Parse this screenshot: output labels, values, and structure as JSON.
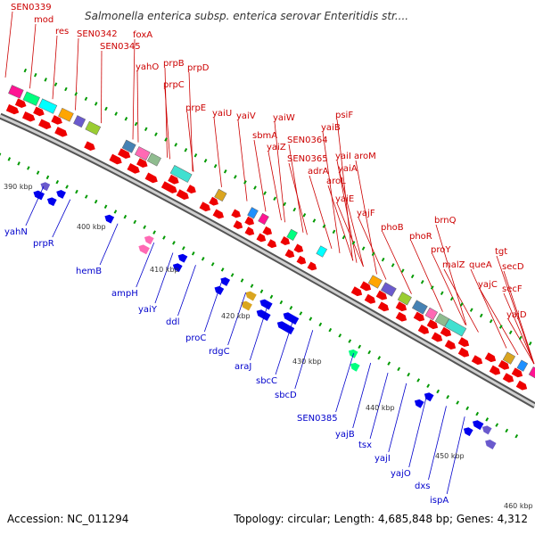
{
  "title": "Salmonella enterica subsp. enterica serovar Enteritidis str....",
  "footer": {
    "accession": "Accession: NC_011294",
    "topology": "Topology: circular; Length: 4,685,848 bp; Genes: 4,312"
  },
  "colors": {
    "backbone": "#888888",
    "forward_label": "#cc0000",
    "reverse_label": "#0000cc",
    "forward_arrow": "#ee0000",
    "reverse_arrow": "#0000ee",
    "tick": "#009900"
  },
  "kbp_labels": [
    "390 kbp",
    "400 kbp",
    "410 kbp",
    "420 kbp",
    "430 kbp",
    "440 kbp",
    "450 kbp",
    "460 kbp"
  ],
  "forward_genes": [
    "SEN0339",
    "mod",
    "res",
    "SEN0342",
    "foxA",
    "SEN0345",
    "yahO",
    "prpB",
    "prpD",
    "prpC",
    "prpE",
    "yaiU",
    "yaiV",
    "yaiW",
    "sbmA",
    "yaiZ",
    "SEN0364",
    "psiF",
    "yaiB",
    "SEN0365",
    "yaiI",
    "aroM",
    "adrA",
    "yaiA",
    "aroL",
    "yaiE",
    "yajF",
    "phoB",
    "brnQ",
    "phoR",
    "proY",
    "malZ",
    "queA",
    "tgt",
    "yajC",
    "secD",
    "secF",
    "yajD"
  ],
  "reverse_genes": [
    "yahN",
    "prpR",
    "hemB",
    "ampH",
    "yaiY",
    "ddl",
    "proC",
    "rdgC",
    "araJ",
    "sbcC",
    "sbcD",
    "SEN0385",
    "yajB",
    "tsx",
    "yajI",
    "yajO",
    "dxs",
    "ispA"
  ]
}
